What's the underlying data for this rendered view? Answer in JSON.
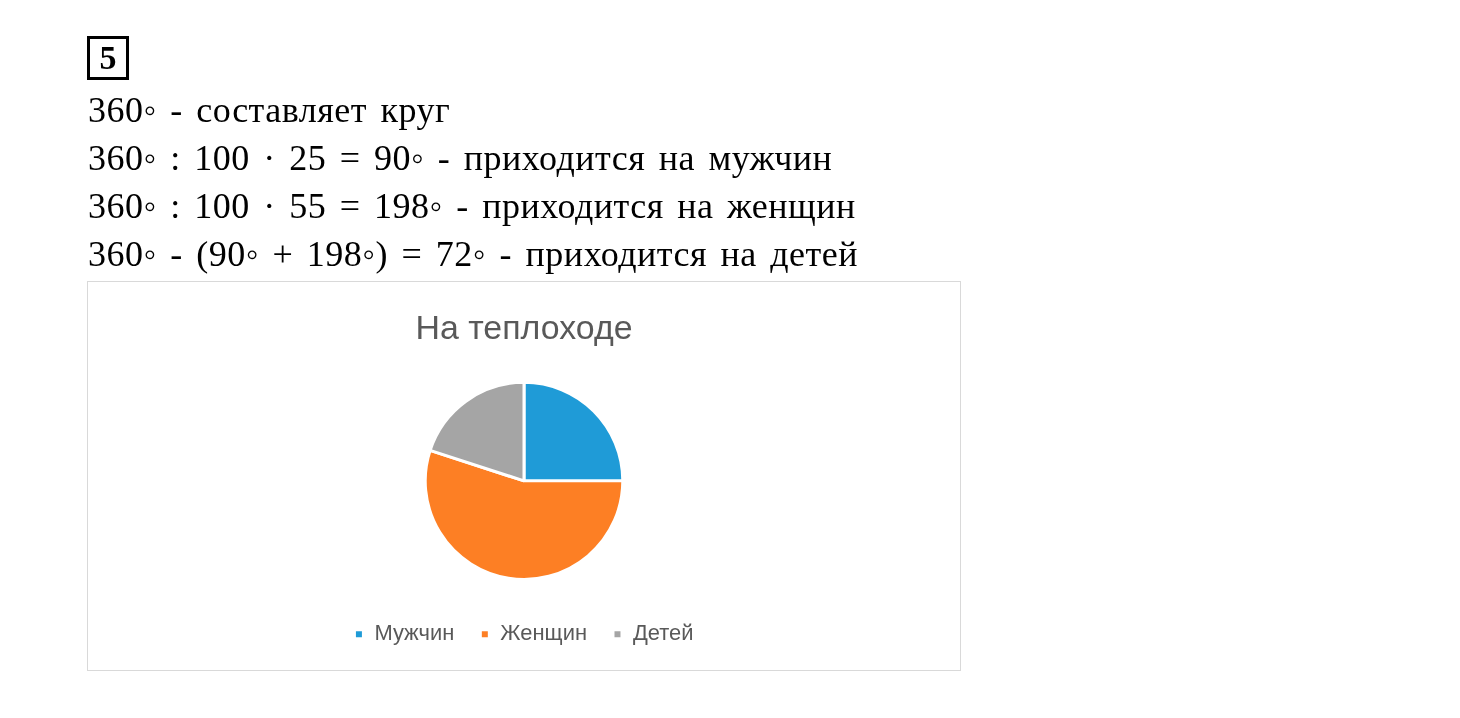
{
  "chart_data": {
    "type": "pie",
    "title": "На теплоходе",
    "categories": [
      "Мужчин",
      "Женщин",
      "Детей"
    ],
    "values": [
      25,
      55,
      20
    ],
    "colors": [
      "#1f9bd7",
      "#fd7f24",
      "#a5a5a5"
    ],
    "legend": "bottom",
    "annotations": [
      "5",
      "360◦ - составляет круг",
      "360◦ : 100 · 25 = 90◦ - приходится на мужчин",
      "360◦ : 100 · 55 = 198◦ - приходится на женщин",
      "360◦ - (90◦ + 198◦) = 72◦ - приходится на детей"
    ]
  }
}
